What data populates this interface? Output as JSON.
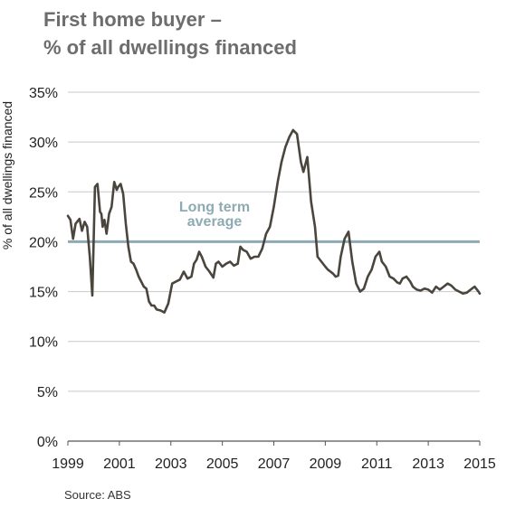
{
  "title_line1": "First home buyer –",
  "title_line2": "% of all dwellings financed",
  "source": "Source: ABS",
  "colors": {
    "line": "#4a453d",
    "average": "#8eaab3",
    "average_text": "#8eaab3",
    "grid": "#c8c8c8",
    "title": "#6d6d6d"
  },
  "chart_data": {
    "type": "line",
    "title": "First home buyer – % of all dwellings financed",
    "xlabel": "",
    "ylabel": "% of all dwellings financed",
    "xlim": [
      1999,
      2015
    ],
    "ylim": [
      0,
      35
    ],
    "y_ticks": [
      "0%",
      "5%",
      "10%",
      "15%",
      "20%",
      "25%",
      "30%",
      "35%"
    ],
    "x_ticks": [
      "1999",
      "2001",
      "2003",
      "2005",
      "2007",
      "2009",
      "2011",
      "2013",
      "2015"
    ],
    "grid": "horizontal",
    "annotation": {
      "text_line1": "Long term",
      "text_line2": "average",
      "value": 20
    },
    "series": [
      {
        "x": [
          1999.0,
          1999.1,
          1999.2,
          1999.3,
          1999.45,
          1999.55,
          1999.65,
          1999.75,
          1999.85,
          1999.95,
          2000.05,
          2000.15,
          2000.25,
          2000.3,
          2000.35,
          2000.42,
          2000.5,
          2000.6,
          2000.7,
          2000.8,
          2000.9,
          2000.95,
          2001.05,
          2001.15,
          2001.25,
          2001.35,
          2001.45,
          2001.55,
          2001.65,
          2001.75,
          2001.85,
          2001.95,
          2002.05,
          2002.15,
          2002.25,
          2002.35,
          2002.45,
          2002.6,
          2002.75,
          2002.9,
          2003.05,
          2003.2,
          2003.35,
          2003.5,
          2003.65,
          2003.8,
          2003.9,
          2004.0,
          2004.1,
          2004.2,
          2004.35,
          2004.5,
          2004.65,
          2004.75,
          2004.85,
          2005.0,
          2005.15,
          2005.3,
          2005.45,
          2005.6,
          2005.7,
          2005.8,
          2005.95,
          2006.1,
          2006.25,
          2006.4,
          2006.55,
          2006.7,
          2006.85,
          2007.0,
          2007.15,
          2007.3,
          2007.45,
          2007.6,
          2007.75,
          2007.9,
          2008.05,
          2008.15,
          2008.3,
          2008.45,
          2008.6,
          2008.7,
          2008.85,
          2009.0,
          2009.1,
          2009.2,
          2009.3,
          2009.4,
          2009.5,
          2009.6,
          2009.75,
          2009.9,
          2010.05,
          2010.2,
          2010.35,
          2010.5,
          2010.65,
          2010.8,
          2010.95,
          2011.1,
          2011.2,
          2011.35,
          2011.5,
          2011.65,
          2011.8,
          2011.9,
          2012.0,
          2012.15,
          2012.3,
          2012.4,
          2012.55,
          2012.7,
          2012.85,
          2013.0,
          2013.15,
          2013.3,
          2013.45,
          2013.6,
          2013.75,
          2013.9,
          2014.05,
          2014.2,
          2014.35,
          2014.5,
          2014.65,
          2014.8,
          2014.95,
          2015.0
        ],
        "y": [
          22.6,
          22.2,
          20.3,
          21.8,
          22.3,
          21.1,
          22.0,
          21.5,
          18.5,
          14.6,
          25.5,
          25.8,
          23.0,
          22.8,
          21.5,
          22.2,
          20.8,
          22.8,
          23.5,
          26.0,
          25.2,
          25.5,
          25.8,
          24.8,
          21.8,
          19.5,
          18.0,
          17.8,
          17.2,
          16.5,
          16.0,
          15.5,
          15.3,
          14.0,
          13.6,
          13.6,
          13.2,
          13.1,
          12.9,
          13.8,
          15.8,
          16.0,
          16.2,
          17.0,
          16.3,
          16.5,
          17.8,
          18.2,
          19.0,
          18.5,
          17.5,
          17.0,
          16.4,
          17.8,
          18.0,
          17.5,
          17.8,
          18.0,
          17.6,
          17.8,
          19.5,
          19.2,
          19.0,
          18.3,
          18.5,
          18.5,
          19.3,
          20.8,
          21.5,
          23.5,
          26.0,
          28.0,
          29.5,
          30.5,
          31.2,
          30.8,
          28.0,
          27.0,
          28.5,
          24.0,
          21.5,
          18.5,
          18.0,
          17.5,
          17.2,
          17.0,
          16.8,
          16.5,
          16.6,
          18.5,
          20.3,
          21.0,
          18.0,
          15.8,
          15.0,
          15.3,
          16.5,
          17.2,
          18.5,
          19.0,
          18.0,
          17.5,
          16.5,
          16.3,
          15.9,
          15.8,
          16.3,
          16.5,
          16.0,
          15.5,
          15.2,
          15.1,
          15.3,
          15.2,
          14.9,
          15.5,
          15.2,
          15.5,
          15.8,
          15.6,
          15.2,
          15.0,
          14.8,
          14.9,
          15.2,
          15.5,
          15.0,
          14.8
        ]
      }
    ]
  }
}
